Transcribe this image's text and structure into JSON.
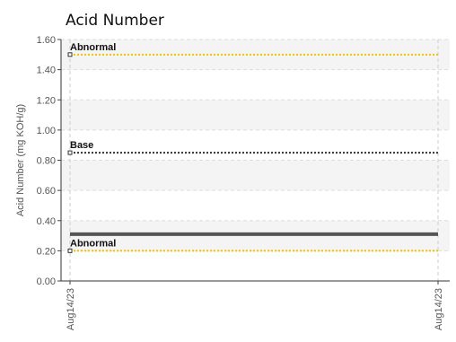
{
  "chart_data": {
    "type": "line",
    "title": "Acid Number",
    "xlabel": "",
    "ylabel": "Acid Number (mg KOH/g)",
    "ylim": [
      0,
      1.6
    ],
    "y_ticks": [
      "0.00",
      "0.20",
      "0.40",
      "0.60",
      "0.80",
      "1.00",
      "1.20",
      "1.40",
      "1.60"
    ],
    "x_ticks": [
      "Aug14/23",
      "Aug14/23"
    ],
    "grid": true,
    "reference_lines": [
      {
        "label": "Abnormal",
        "value": 1.5,
        "color": "#f2c200",
        "style": "dotted"
      },
      {
        "label": "Base",
        "value": 0.85,
        "color": "#333333",
        "style": "dotted"
      },
      {
        "label": "Abnormal",
        "value": 0.2,
        "color": "#f2c200",
        "style": "dotted"
      }
    ],
    "series": [
      {
        "values": [
          0.31,
          0.31
        ],
        "color": "#555555"
      }
    ]
  }
}
